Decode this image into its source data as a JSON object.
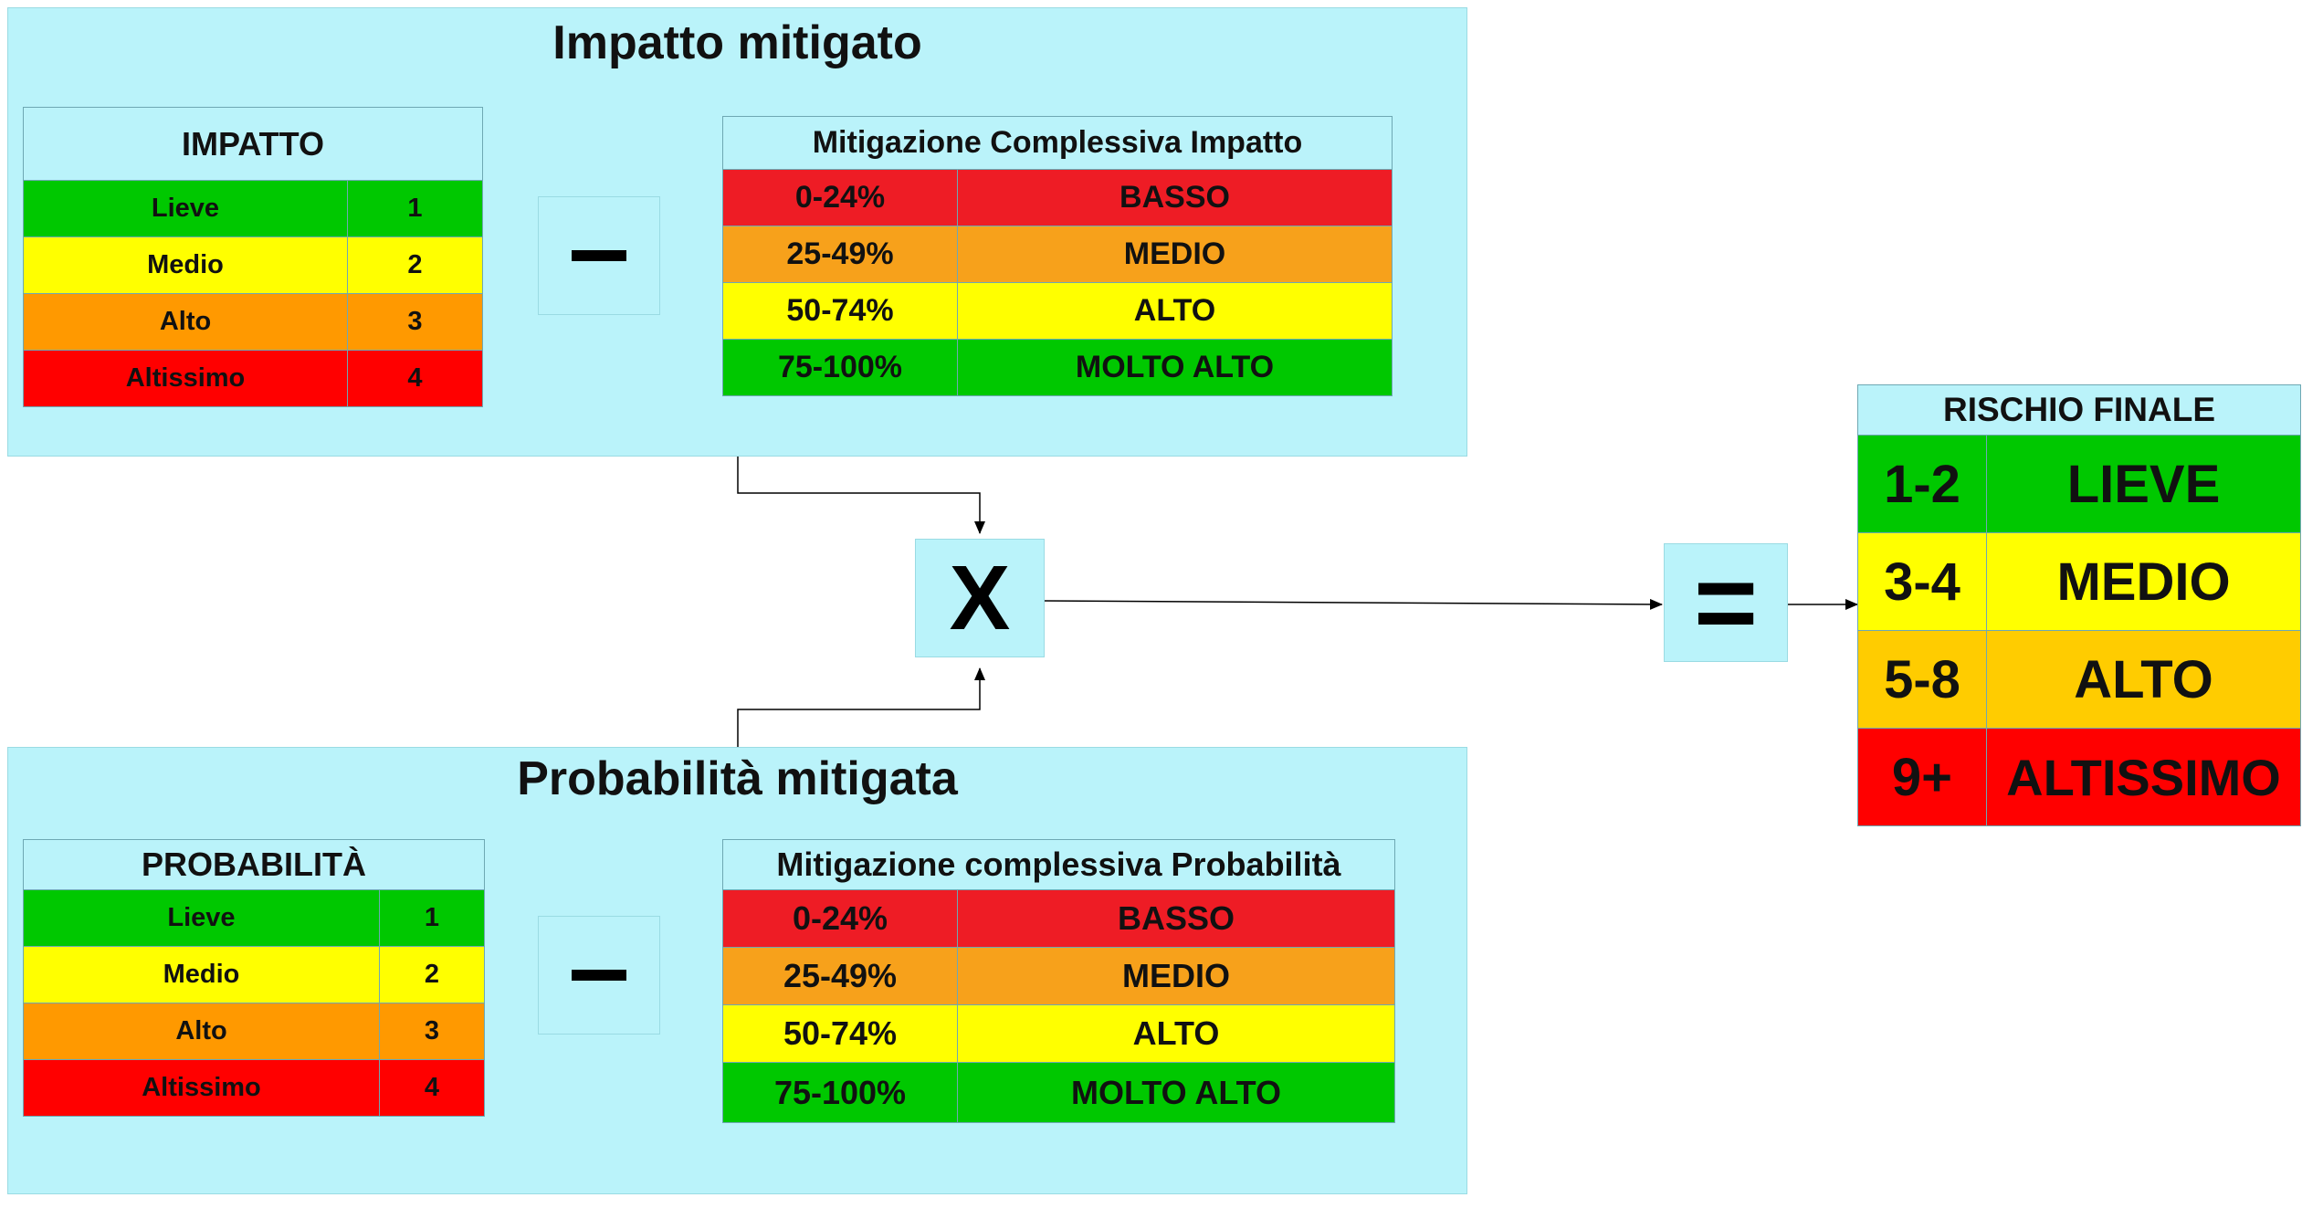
{
  "impact_panel": {
    "title": "Impatto mitigato",
    "base_table": {
      "header": "IMPATTO",
      "rows": [
        {
          "label": "Lieve",
          "value": "1",
          "color": "#00c800"
        },
        {
          "label": "Medio",
          "value": "2",
          "color": "#ffff00"
        },
        {
          "label": "Alto",
          "value": "3",
          "color": "#ff9900"
        },
        {
          "label": "Altissimo",
          "value": "4",
          "color": "#ff0000"
        }
      ]
    },
    "operator": "minus",
    "mitigation_table": {
      "header": "Mitigazione Complessiva Impatto",
      "rows": [
        {
          "range": "0-24%",
          "level": "BASSO",
          "color": "#ee1c25"
        },
        {
          "range": "25-49%",
          "level": "MEDIO",
          "color": "#f7a11b"
        },
        {
          "range": "50-74%",
          "level": "ALTO",
          "color": "#ffff00"
        },
        {
          "range": "75-100%",
          "level": "MOLTO ALTO",
          "color": "#00c800"
        }
      ]
    }
  },
  "probability_panel": {
    "title": "Probabilità mitigata",
    "base_table": {
      "header": "PROBABILITÀ",
      "rows": [
        {
          "label": "Lieve",
          "value": "1",
          "color": "#00c800"
        },
        {
          "label": "Medio",
          "value": "2",
          "color": "#ffff00"
        },
        {
          "label": "Alto",
          "value": "3",
          "color": "#ff9900"
        },
        {
          "label": "Altissimo",
          "value": "4",
          "color": "#ff0000"
        }
      ]
    },
    "operator": "minus",
    "mitigation_table": {
      "header": "Mitigazione complessiva Probabilità",
      "rows": [
        {
          "range": "0-24%",
          "level": "BASSO",
          "color": "#ee1c25"
        },
        {
          "range": "25-49%",
          "level": "MEDIO",
          "color": "#f7a11b"
        },
        {
          "range": "50-74%",
          "level": "ALTO",
          "color": "#ffff00"
        },
        {
          "range": "75-100%",
          "level": "MOLTO ALTO",
          "color": "#00c800"
        }
      ]
    }
  },
  "multiply_operator": "X",
  "equals_operator": "=",
  "final_table": {
    "header": "RISCHIO FINALE",
    "rows": [
      {
        "range": "1-2",
        "level": "LIEVE",
        "color": "#00c800"
      },
      {
        "range": "3-4",
        "level": "MEDIO",
        "color": "#ffff00"
      },
      {
        "range": "5-8",
        "level": "ALTO",
        "color": "#ffcc00"
      },
      {
        "range": "9+",
        "level": "ALTISSIMO",
        "color": "#ff0000"
      }
    ]
  },
  "colors": {
    "panel_background": "#baf3fa",
    "panel_border": "#9adbe3",
    "cell_border": "#6ea8b3"
  }
}
